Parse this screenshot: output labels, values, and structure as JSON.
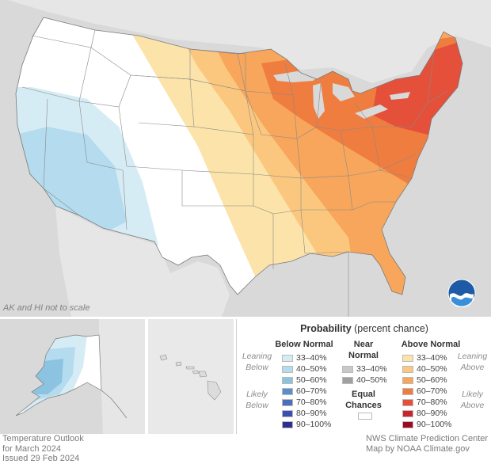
{
  "map": {
    "scale_note": "AK and HI not to scale",
    "logo_text": "NOAA"
  },
  "legend": {
    "title_bold": "Probability",
    "title_rest": " (percent chance)",
    "below": {
      "heading": "Below Normal",
      "side_top_1": "Leaning",
      "side_top_2": "Below",
      "side_bottom_1": "Likely",
      "side_bottom_2": "Below",
      "items": [
        {
          "label": "33–40%",
          "color": "#d6ecf5"
        },
        {
          "label": "40–50%",
          "color": "#b4dbee"
        },
        {
          "label": "50–60%",
          "color": "#8cc3e0"
        },
        {
          "label": "60–70%",
          "color": "#5b8fcb"
        },
        {
          "label": "70–80%",
          "color": "#4a6fbc"
        },
        {
          "label": "80–90%",
          "color": "#3d4fae"
        },
        {
          "label": "90–100%",
          "color": "#2c2f8f"
        }
      ]
    },
    "near": {
      "heading_1": "Near",
      "heading_2": "Normal",
      "items": [
        {
          "label": "33–40%",
          "color": "#c8c8c8"
        },
        {
          "label": "40–50%",
          "color": "#a0a0a0"
        }
      ],
      "equal_1": "Equal",
      "equal_2": "Chances",
      "equal_color": "#ffffff"
    },
    "above": {
      "heading": "Above Normal",
      "side_top_1": "Leaning",
      "side_top_2": "Above",
      "side_bottom_1": "Likely",
      "side_bottom_2": "Above",
      "items": [
        {
          "label": "33–40%",
          "color": "#fce3a9"
        },
        {
          "label": "40–50%",
          "color": "#fbc77e"
        },
        {
          "label": "50–60%",
          "color": "#f7a65b"
        },
        {
          "label": "60–70%",
          "color": "#ef7d3f"
        },
        {
          "label": "70–80%",
          "color": "#e4503a"
        },
        {
          "label": "80–90%",
          "color": "#c8262c"
        },
        {
          "label": "90–100%",
          "color": "#9a0b22"
        }
      ]
    }
  },
  "footer": {
    "left_1": "Temperature Outlook",
    "left_2": "for March 2024",
    "left_3": "Issued 29 Feb 2024",
    "right_1": "NWS Climate Prediction Center",
    "right_2": "Map by NOAA Climate.gov"
  }
}
